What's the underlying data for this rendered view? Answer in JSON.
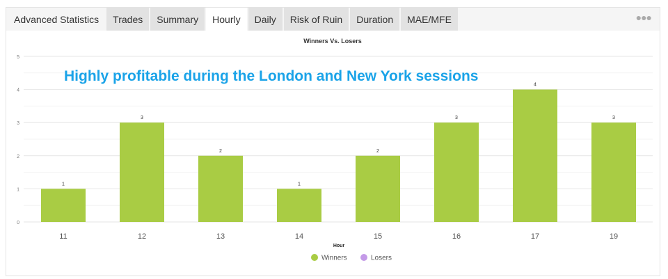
{
  "tabs": [
    {
      "label": "Advanced Statistics"
    },
    {
      "label": "Trades"
    },
    {
      "label": "Summary"
    },
    {
      "label": "Hourly",
      "active": true
    },
    {
      "label": "Daily"
    },
    {
      "label": "Risk of Ruin"
    },
    {
      "label": "Duration"
    },
    {
      "label": "MAE/MFE"
    }
  ],
  "more_icon": "ellipsis-icon",
  "annotation": "Highly profitable during the London and New York sessions",
  "chart_data": {
    "type": "bar",
    "title": "Winners Vs. Losers",
    "xlabel": "Hour",
    "ylabel": "",
    "categories": [
      "11",
      "12",
      "13",
      "14",
      "15",
      "16",
      "17",
      "19"
    ],
    "series": [
      {
        "name": "Winners",
        "values": [
          1,
          3,
          2,
          1,
          2,
          3,
          4,
          3
        ],
        "color": "#a9cc44"
      },
      {
        "name": "Losers",
        "values": [
          0,
          0,
          0,
          0,
          0,
          0,
          0,
          0
        ],
        "color": "#c49ae8"
      }
    ],
    "ylim": [
      0,
      5
    ],
    "yticks": [
      "0",
      "1",
      "2",
      "3",
      "4",
      "5"
    ],
    "grid": true,
    "legend": "bottom"
  }
}
